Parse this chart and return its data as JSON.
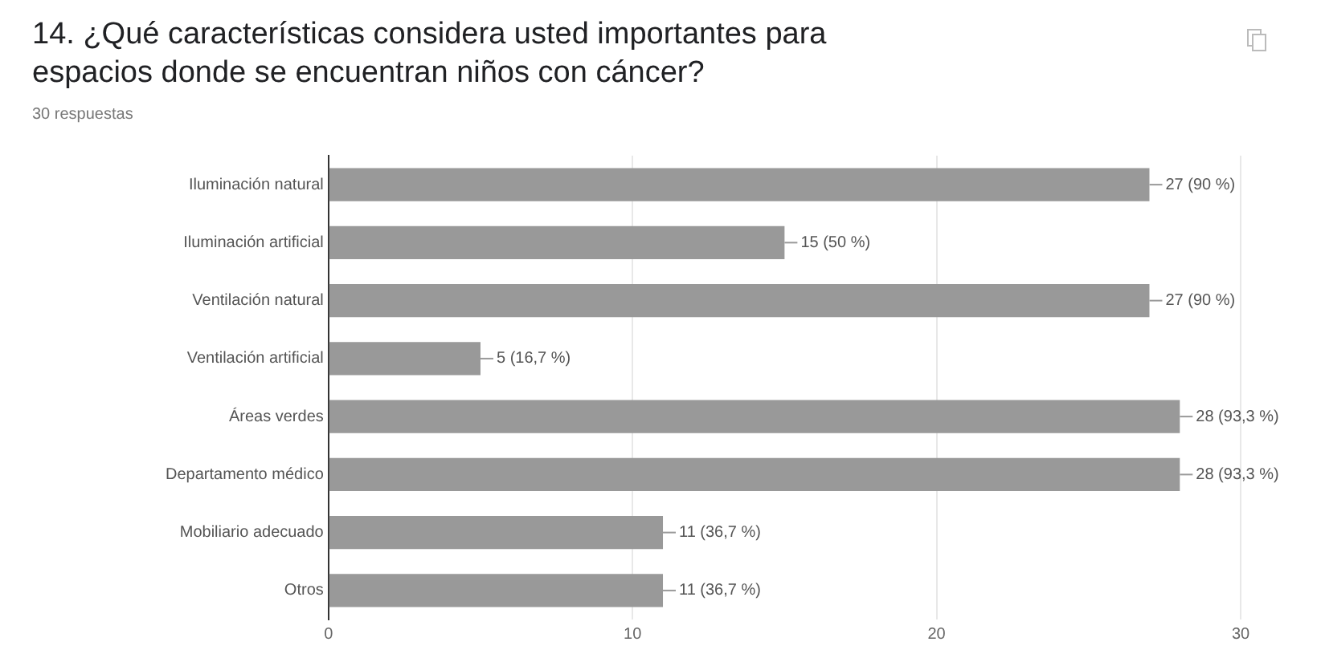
{
  "chart_data": {
    "type": "bar",
    "orientation": "horizontal",
    "title": "14. ¿Qué características considera usted importantes para espacios donde se encuentran niños con cáncer?",
    "subtitle": "30 respuestas",
    "categories": [
      "Iluminación natural",
      "Iluminación artificial",
      "Ventilación natural",
      "Ventilación artificial",
      "Áreas verdes",
      "Departamento médico",
      "Mobiliario adecuado",
      "Otros"
    ],
    "values": [
      27,
      15,
      27,
      5,
      28,
      28,
      11,
      11
    ],
    "value_labels": [
      "27 (90 %)",
      "15 (50 %)",
      "27 (90 %)",
      "5 (16,7 %)",
      "28 (93,3 %)",
      "28 (93,3 %)",
      "11 (36,7 %)",
      "11 (36,7 %)"
    ],
    "color": "#999999",
    "xlim": [
      0,
      30
    ],
    "xticks": [
      0,
      10,
      20,
      30
    ],
    "grid": "x",
    "legend": false
  }
}
